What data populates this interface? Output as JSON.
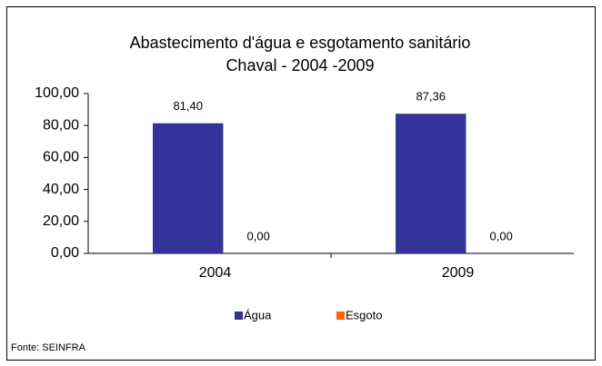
{
  "chart_data": {
    "type": "bar",
    "title": [
      "Abastecimento d'água e esgotamento sanitário",
      "Chaval - 2004 -2009"
    ],
    "categories": [
      "2004",
      "2009"
    ],
    "series": [
      {
        "name": "Água",
        "color": "#333399",
        "values": [
          81.4,
          87.36
        ],
        "value_labels": [
          "81,40",
          "87,36"
        ]
      },
      {
        "name": "Esgoto",
        "color": "#ff6600",
        "values": [
          0,
          0
        ],
        "value_labels": [
          "0,00",
          "0,00"
        ]
      }
    ],
    "ylim": [
      0,
      100
    ],
    "yticks": [
      {
        "value": 0,
        "label": "0,00"
      },
      {
        "value": 20,
        "label": "20,00"
      },
      {
        "value": 40,
        "label": "40,00"
      },
      {
        "value": 60,
        "label": "60,00"
      },
      {
        "value": 80,
        "label": "80,00"
      },
      {
        "value": 100,
        "label": "100,00"
      }
    ],
    "legend": "bottom",
    "source": "Fonte: SEINFRA"
  }
}
